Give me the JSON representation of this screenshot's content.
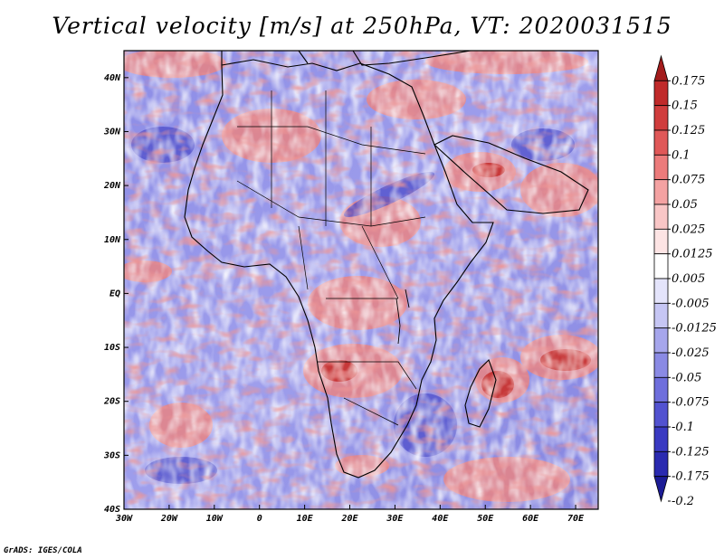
{
  "title": "Vertical velocity [m/s] at 250hPa, VT: 2020031515",
  "credit": "GrADS: IGES/COLA",
  "map": {
    "variable": "Vertical velocity",
    "units": "m/s",
    "level": "250hPa",
    "valid_time": "2020031515",
    "lon_range": [
      -30,
      75
    ],
    "lat_range": [
      -40,
      45
    ],
    "lon_ticks": [
      {
        "value": -30,
        "label": "30W"
      },
      {
        "value": -20,
        "label": "20W"
      },
      {
        "value": -10,
        "label": "10W"
      },
      {
        "value": 0,
        "label": "0"
      },
      {
        "value": 10,
        "label": "10E"
      },
      {
        "value": 20,
        "label": "20E"
      },
      {
        "value": 30,
        "label": "30E"
      },
      {
        "value": 40,
        "label": "40E"
      },
      {
        "value": 50,
        "label": "50E"
      },
      {
        "value": 60,
        "label": "60E"
      },
      {
        "value": 70,
        "label": "70E"
      }
    ],
    "lat_ticks": [
      {
        "value": 40,
        "label": "40N"
      },
      {
        "value": 30,
        "label": "30N"
      },
      {
        "value": 20,
        "label": "20N"
      },
      {
        "value": 10,
        "label": "10N"
      },
      {
        "value": 0,
        "label": "EQ"
      },
      {
        "value": -10,
        "label": "10S"
      },
      {
        "value": -20,
        "label": "20S"
      },
      {
        "value": -30,
        "label": "30S"
      },
      {
        "value": -40,
        "label": "40S"
      }
    ]
  },
  "colorbar": {
    "colors": [
      "#a31c1c",
      "#c02a2a",
      "#d03d3d",
      "#e05858",
      "#ec7b7b",
      "#f4a2a2",
      "#f9c6c6",
      "#fde4e4",
      "#ffffff",
      "#e4e4fb",
      "#c6c6f4",
      "#a6a6ec",
      "#8a8ae4",
      "#6e6edc",
      "#5252d0",
      "#3a3ac2",
      "#2a2ab0",
      "#1c1c96"
    ],
    "labels": [
      "0.175",
      "0.15",
      "0.125",
      "0.1",
      "0.075",
      "0.05",
      "0.025",
      "0.0125",
      "0.005",
      "-0.005",
      "-0.0125",
      "-0.025",
      "-0.05",
      "-0.075",
      "-0.1",
      "-0.125",
      "-0.175",
      "-0.2"
    ]
  }
}
